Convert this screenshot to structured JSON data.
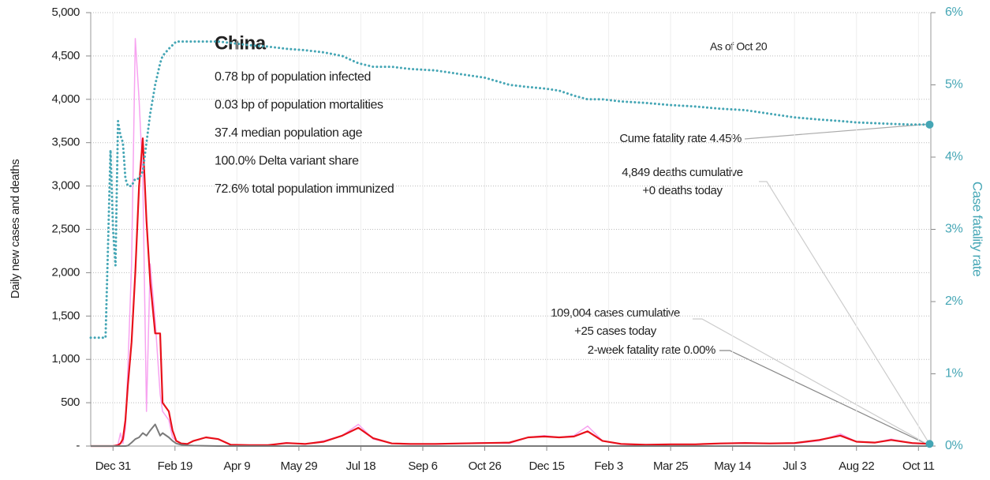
{
  "chart_data": {
    "type": "line",
    "title": "China",
    "stats": [
      "0.78 bp of population infected",
      "0.03 bp of population mortalities",
      "37.4 median population age",
      "100.0% Delta variant share",
      "72.6% total population immunized"
    ],
    "note": "As of Oct 20",
    "annotations": [
      "Cume fatality rate 4.45%",
      "4,849 deaths cumulative",
      "+0 deaths today",
      "2-week fatality rate 0.00%",
      "109,004 cases cumulative",
      "+25 cases today"
    ],
    "ylabel": "Daily new cases and deaths",
    "y2label": "Case fatality rate",
    "x": [
      -18,
      -10,
      -6,
      -4,
      -2,
      0,
      2,
      4,
      6,
      8,
      10,
      12,
      15,
      18,
      21,
      24,
      27,
      30,
      34,
      38,
      40,
      45,
      48,
      51,
      55,
      60,
      65,
      75,
      85,
      95,
      110,
      125,
      140,
      155,
      170,
      185,
      198,
      210,
      225,
      240,
      260,
      280,
      300,
      320,
      335,
      348,
      360,
      372,
      383,
      395,
      410,
      430,
      450,
      470,
      490,
      510,
      530,
      550,
      570,
      587,
      600,
      615,
      628,
      645,
      659
    ],
    "xlim": [
      -18,
      660
    ],
    "xticks": [
      {
        "value": 0,
        "label": "Dec 31"
      },
      {
        "value": 50,
        "label": "Feb 19"
      },
      {
        "value": 100,
        "label": "Apr 9"
      },
      {
        "value": 150,
        "label": "May 29"
      },
      {
        "value": 200,
        "label": "Jul 18"
      },
      {
        "value": 250,
        "label": "Sep 6"
      },
      {
        "value": 300,
        "label": "Oct 26"
      },
      {
        "value": 350,
        "label": "Dec 15"
      },
      {
        "value": 400,
        "label": "Feb 3"
      },
      {
        "value": 450,
        "label": "Mar 25"
      },
      {
        "value": 500,
        "label": "May 14"
      },
      {
        "value": 550,
        "label": "Jul 3"
      },
      {
        "value": 600,
        "label": "Aug 22"
      },
      {
        "value": 650,
        "label": "Oct 11"
      }
    ],
    "ylim": [
      0,
      5000
    ],
    "yticks": [
      {
        "value": 0,
        "label": "-"
      },
      500,
      {
        "value": 1000,
        "label": "1,000"
      },
      {
        "value": 1500,
        "label": "1,500"
      },
      {
        "value": 2000,
        "label": "2,000"
      },
      {
        "value": 2500,
        "label": "2,500"
      },
      {
        "value": 3000,
        "label": "3,000"
      },
      {
        "value": 3500,
        "label": "3,500"
      },
      {
        "value": 4000,
        "label": "4,000"
      },
      {
        "value": 4500,
        "label": "4,500"
      },
      {
        "value": 5000,
        "label": "5,000"
      }
    ],
    "y2lim": [
      0,
      6
    ],
    "y2ticks": [
      {
        "value": 0,
        "label": "0%"
      },
      {
        "value": 1,
        "label": "1%"
      },
      {
        "value": 2,
        "label": "2%"
      },
      {
        "value": 3,
        "label": "3%"
      },
      {
        "value": 4,
        "label": "4%"
      },
      {
        "value": 5,
        "label": "5%"
      },
      {
        "value": 6,
        "label": "6%"
      }
    ],
    "grid": true,
    "series": [
      {
        "color": "#f7a3f0",
        "width": 1.5,
        "values": [
          0,
          0,
          0,
          0,
          0,
          0,
          10,
          20,
          150,
          30,
          200,
          900,
          2100,
          4700,
          4000,
          3100,
          400,
          2100,
          1450,
          600,
          400,
          300,
          100,
          60,
          30,
          20,
          60,
          100,
          80,
          10,
          10,
          10,
          40,
          20,
          60,
          120,
          250,
          80,
          30,
          20,
          20,
          30,
          40,
          30,
          100,
          120,
          100,
          120,
          230,
          60,
          20,
          10,
          20,
          20,
          30,
          40,
          30,
          30,
          60,
          140,
          50,
          40,
          80,
          30,
          25
        ]
      },
      {
        "color": "#e8101a",
        "width": 2.2,
        "values": [
          0,
          0,
          0,
          0,
          0,
          0,
          5,
          10,
          30,
          80,
          300,
          700,
          1200,
          2000,
          3000,
          3550,
          2600,
          1900,
          1300,
          1300,
          500,
          400,
          180,
          60,
          30,
          25,
          60,
          100,
          80,
          15,
          10,
          10,
          35,
          25,
          50,
          120,
          210,
          90,
          30,
          25,
          25,
          30,
          35,
          40,
          100,
          110,
          100,
          110,
          170,
          60,
          25,
          15,
          20,
          20,
          30,
          35,
          30,
          35,
          70,
          120,
          50,
          40,
          70,
          35,
          25
        ]
      },
      {
        "color": "#7a7a7a",
        "width": 2,
        "values": [
          0,
          0,
          0,
          0,
          0,
          0,
          0,
          0,
          0,
          0,
          0,
          5,
          40,
          80,
          100,
          150,
          120,
          180,
          250,
          120,
          150,
          100,
          60,
          30,
          15,
          8,
          5,
          2,
          0,
          0,
          0,
          0,
          0,
          0,
          0,
          0,
          0,
          0,
          0,
          0,
          0,
          0,
          0,
          0,
          0,
          0,
          0,
          0,
          0,
          0,
          0,
          0,
          0,
          0,
          0,
          0,
          0,
          0,
          0,
          0,
          0,
          0,
          0,
          0,
          0
        ]
      },
      {
        "color": "#45a6b5",
        "width": 3,
        "style": "dotted",
        "axis": "y2",
        "values": [
          1.5,
          1.5,
          1.5,
          2.8,
          4.1,
          3.0,
          2.5,
          4.5,
          4.3,
          4.2,
          3.7,
          3.6,
          3.6,
          3.7,
          3.7,
          3.8,
          4.2,
          4.6,
          5.0,
          5.3,
          5.4,
          5.5,
          5.55,
          5.6,
          5.6,
          5.6,
          5.6,
          5.6,
          5.6,
          5.58,
          5.55,
          5.53,
          5.5,
          5.48,
          5.45,
          5.4,
          5.3,
          5.25,
          5.25,
          5.22,
          5.2,
          5.15,
          5.1,
          5.0,
          4.97,
          4.95,
          4.92,
          4.85,
          4.8,
          4.8,
          4.77,
          4.75,
          4.72,
          4.7,
          4.67,
          4.65,
          4.6,
          4.55,
          4.52,
          4.5,
          4.48,
          4.47,
          4.46,
          4.45,
          4.45
        ]
      }
    ]
  }
}
